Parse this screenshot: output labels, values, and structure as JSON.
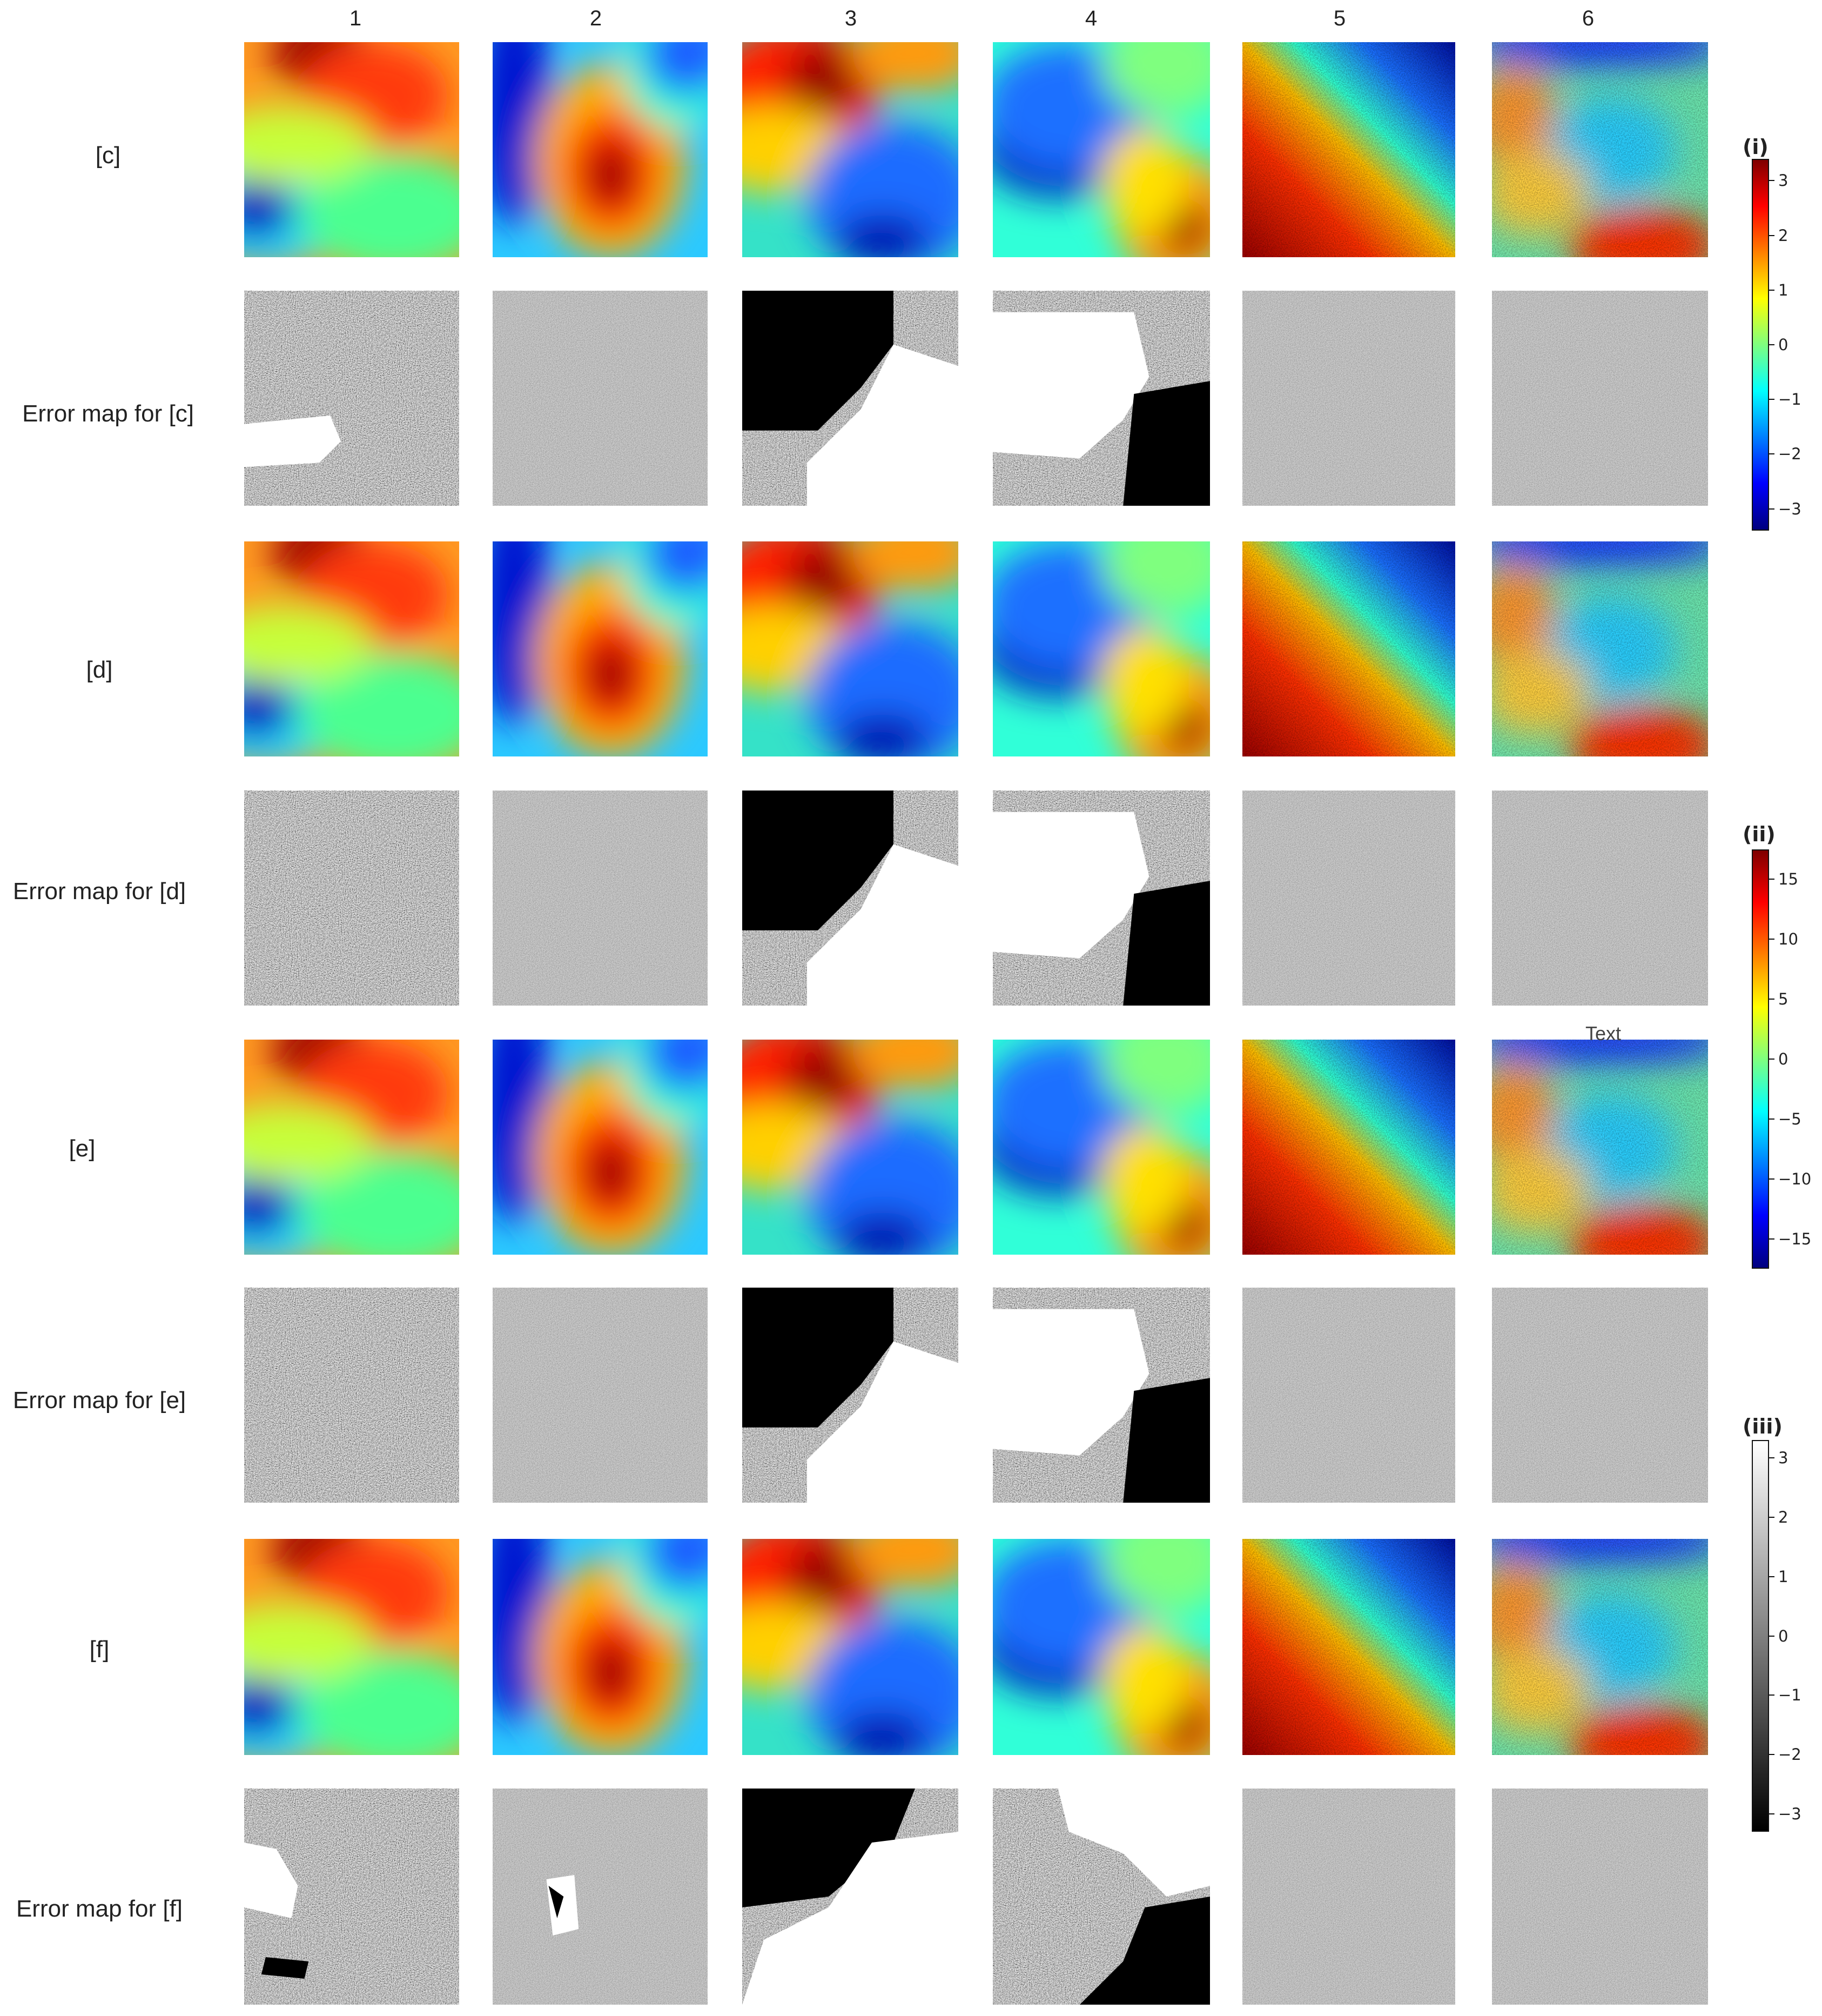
{
  "column_labels": [
    "1",
    "2",
    "3",
    "4",
    "5",
    "6"
  ],
  "row_labels": [
    "[c]",
    "Error map for [c]",
    "[d]",
    "Error map for [d]",
    "[e]",
    "Error map for [e]",
    "[f]",
    "Error map for [f]"
  ],
  "colorbars": [
    {
      "title": "(i)",
      "colormap": "jet",
      "range": [
        -3.4,
        3.4
      ],
      "ticks": [
        "3",
        "2",
        "1",
        "0",
        "−1",
        "−2",
        "−3"
      ],
      "tick_values": [
        3,
        2,
        1,
        0,
        -1,
        -2,
        -3
      ]
    },
    {
      "title": "(ii)",
      "colormap": "jet",
      "range": [
        -17.5,
        17.5
      ],
      "ticks": [
        "15",
        "10",
        "5",
        "0",
        "−5",
        "−10",
        "−15"
      ],
      "tick_values": [
        15,
        10,
        5,
        0,
        -5,
        -10,
        -15
      ]
    },
    {
      "title": "(iii)",
      "colormap": "gray",
      "range": [
        -3.3,
        3.3
      ],
      "ticks": [
        "3",
        "2",
        "1",
        "0",
        "−1",
        "−2",
        "−3"
      ],
      "tick_values": [
        3,
        2,
        1,
        0,
        -1,
        -2,
        -3
      ]
    }
  ],
  "stray_text": "Text"
}
